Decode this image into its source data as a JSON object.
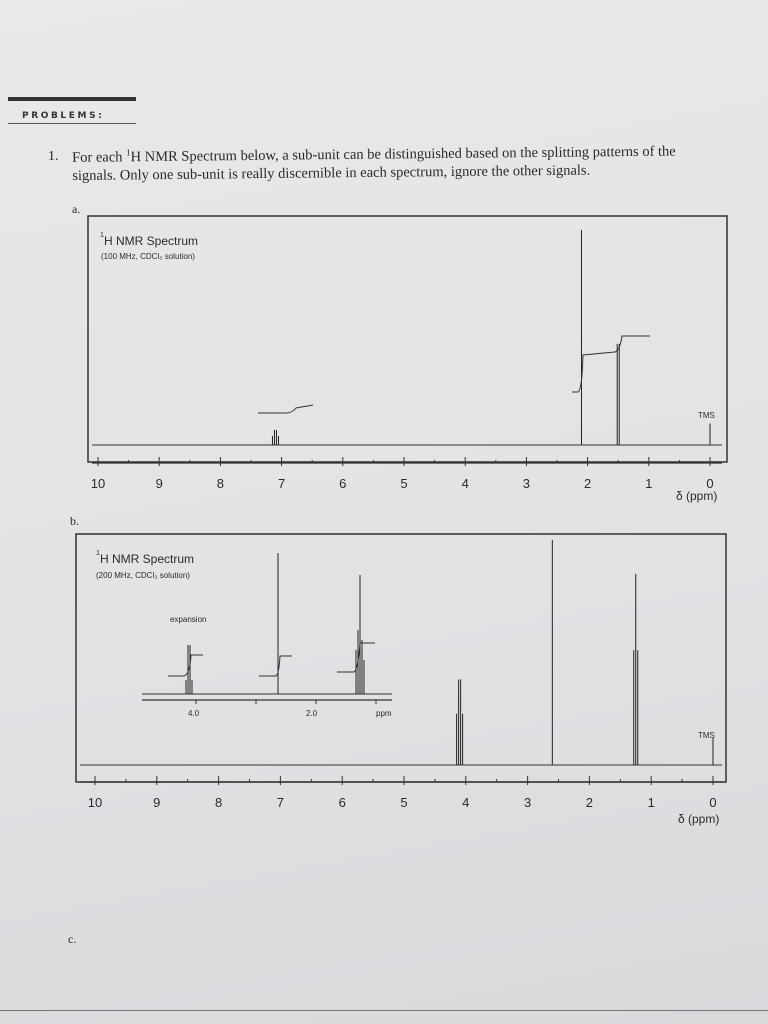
{
  "header": {
    "section_label": "PROBLEMS:"
  },
  "question": {
    "number": "1.",
    "text_pre": "For each ",
    "superscript": "1",
    "text_post": "H NMR Spectrum below, a sub-unit can be distinguished based on the splitting patterns of the signals.  Only one sub-unit is really discernible in each spectrum, ignore the other signals."
  },
  "parts": {
    "a": "a.",
    "b": "b.",
    "c": "c."
  },
  "chart_data": [
    {
      "type": "line",
      "title_sup": "1",
      "title": "H NMR Spectrum",
      "subtitle": "(100 MHz, CDCl₃ solution)",
      "xlabel": "δ (ppm)",
      "xlim": [
        10,
        0
      ],
      "x_ticks": [
        "10",
        "9",
        "8",
        "7",
        "6",
        "5",
        "4",
        "3",
        "2",
        "1",
        "0"
      ],
      "reference_label": "TMS",
      "peaks": [
        {
          "ppm": 7.1,
          "relative_intensity": 0.07,
          "lines": 4
        },
        {
          "ppm": 2.1,
          "relative_intensity": 1.0,
          "lines": 1
        },
        {
          "ppm": 1.5,
          "relative_intensity": 0.47,
          "lines": 2
        },
        {
          "ppm": 0,
          "relative_intensity": 0.1,
          "lines": 1
        }
      ]
    },
    {
      "type": "line",
      "title_sup": "1",
      "title": "H NMR Spectrum",
      "subtitle": "(200 MHz, CDCl₃ solution)",
      "xlabel": "δ (ppm)",
      "xlim": [
        10,
        0
      ],
      "x_ticks": [
        "10",
        "9",
        "8",
        "7",
        "6",
        "5",
        "4",
        "3",
        "2",
        "1",
        "0"
      ],
      "reference_label": "TMS",
      "inset": {
        "label": "expansion",
        "x_ticks": [
          "4.0",
          "2.0"
        ],
        "unit": "ppm"
      },
      "peaks": [
        {
          "ppm": 4.1,
          "relative_intensity": 0.38,
          "lines": 4
        },
        {
          "ppm": 2.6,
          "relative_intensity": 1.0,
          "lines": 1
        },
        {
          "ppm": 1.25,
          "relative_intensity": 0.85,
          "lines": 3
        },
        {
          "ppm": 0,
          "relative_intensity": 0.12,
          "lines": 1
        }
      ]
    }
  ]
}
